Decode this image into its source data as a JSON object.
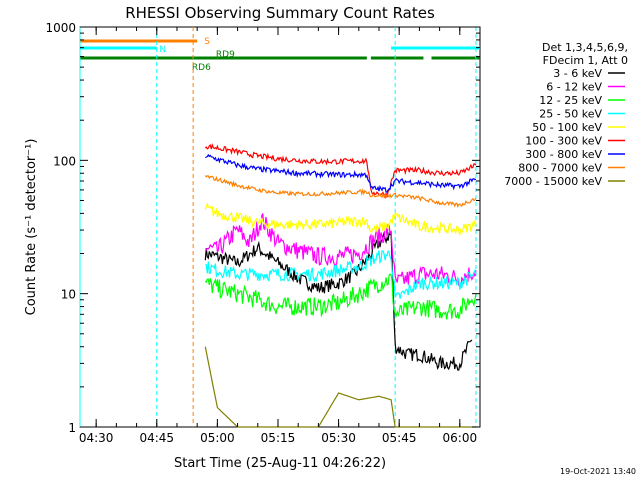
{
  "chart_data": {
    "type": "line",
    "title": "RHESSI Observing Summary Count Rates",
    "xlabel": "Start Time (25-Aug-11 04:26:22)",
    "ylabel": "Count Rate (s⁻¹ detector⁻¹)",
    "yscale": "log",
    "ylim": [
      1,
      1000
    ],
    "xlim": [
      "04:26",
      "06:05"
    ],
    "x_ticks": [
      "04:30",
      "04:45",
      "05:00",
      "05:15",
      "05:30",
      "05:45",
      "06:00"
    ],
    "y_ticks": [
      "1",
      "10",
      "100",
      "1000"
    ],
    "legend_header": [
      "Det 1,3,4,5,6,9,",
      "FDecim 1, Att 0"
    ],
    "legend_position": "right",
    "timestamp": "19-Oct-2021 13:40",
    "flags": [
      {
        "label": "S",
        "color": "#ff8000",
        "segments": [
          [
            "04:26",
            "04:55"
          ]
        ]
      },
      {
        "label": "N",
        "color": "#00ffff",
        "segments": [
          [
            "04:26",
            "04:45"
          ],
          [
            "05:43",
            "06:05"
          ]
        ]
      },
      {
        "label": "RD6",
        "color": "#008000",
        "segments": [
          [
            "04:26",
            "05:00"
          ]
        ]
      },
      {
        "label": "RD9",
        "color": "#008000",
        "segments": [
          [
            "05:00",
            "05:37"
          ],
          [
            "05:38",
            "05:51"
          ],
          [
            "05:53",
            "06:05"
          ]
        ]
      }
    ],
    "vertical_markers": [
      {
        "time": "04:26",
        "color": "#00ffff"
      },
      {
        "time": "04:45",
        "color": "#00ffff"
      },
      {
        "time": "04:54",
        "color": "#ff8000"
      },
      {
        "time": "05:44",
        "color": "#00ffff"
      },
      {
        "time": "06:04",
        "color": "#00ffff"
      }
    ],
    "series": [
      {
        "name": "3 - 6 keV",
        "color": "#000000",
        "points": [
          [
            "04:57",
            20
          ],
          [
            "05:00",
            19
          ],
          [
            "05:05",
            17
          ],
          [
            "05:10",
            22
          ],
          [
            "05:15",
            17
          ],
          [
            "05:20",
            13
          ],
          [
            "05:25",
            11
          ],
          [
            "05:30",
            12
          ],
          [
            "05:34",
            14
          ],
          [
            "05:37",
            18
          ],
          [
            "05:40",
            24
          ],
          [
            "05:43",
            28
          ],
          [
            "05:44",
            4
          ],
          [
            "05:47",
            3.5
          ],
          [
            "05:50",
            3.5
          ],
          [
            "05:55",
            3
          ],
          [
            "06:00",
            3
          ],
          [
            "06:03",
            4.5
          ]
        ]
      },
      {
        "name": "6 - 12 keV",
        "color": "#ff00ff",
        "points": [
          [
            "04:57",
            22
          ],
          [
            "05:00",
            21
          ],
          [
            "05:05",
            30
          ],
          [
            "05:08",
            24
          ],
          [
            "05:11",
            36
          ],
          [
            "05:15",
            24
          ],
          [
            "05:20",
            21
          ],
          [
            "05:25",
            19
          ],
          [
            "05:30",
            19
          ],
          [
            "05:35",
            20
          ],
          [
            "05:39",
            26
          ],
          [
            "05:43",
            30
          ],
          [
            "05:44",
            12
          ],
          [
            "05:50",
            14
          ],
          [
            "05:55",
            14
          ],
          [
            "06:00",
            13
          ],
          [
            "06:04",
            15
          ]
        ]
      },
      {
        "name": "12 - 25 keV",
        "color": "#00ff00",
        "points": [
          [
            "04:57",
            12
          ],
          [
            "05:00",
            11
          ],
          [
            "05:05",
            10
          ],
          [
            "05:10",
            9
          ],
          [
            "05:15",
            8
          ],
          [
            "05:20",
            8
          ],
          [
            "05:25",
            8
          ],
          [
            "05:30",
            8.5
          ],
          [
            "05:35",
            10
          ],
          [
            "05:40",
            12
          ],
          [
            "05:43",
            13
          ],
          [
            "05:44",
            7
          ],
          [
            "05:50",
            8
          ],
          [
            "05:55",
            7.5
          ],
          [
            "06:00",
            7.5
          ],
          [
            "06:04",
            10
          ]
        ]
      },
      {
        "name": "25 - 50 keV",
        "color": "#00ffff",
        "points": [
          [
            "04:57",
            16
          ],
          [
            "05:00",
            15
          ],
          [
            "05:05",
            14
          ],
          [
            "05:10",
            14
          ],
          [
            "05:15",
            14
          ],
          [
            "05:20",
            14
          ],
          [
            "05:25",
            14
          ],
          [
            "05:30",
            15
          ],
          [
            "05:35",
            16
          ],
          [
            "05:40",
            19
          ],
          [
            "05:43",
            20
          ],
          [
            "05:44",
            9
          ],
          [
            "05:50",
            12
          ],
          [
            "05:55",
            12
          ],
          [
            "06:00",
            12
          ],
          [
            "06:04",
            14
          ]
        ]
      },
      {
        "name": "50 - 100 keV",
        "color": "#ffff00",
        "points": [
          [
            "04:57",
            44
          ],
          [
            "05:00",
            40
          ],
          [
            "05:05",
            37
          ],
          [
            "05:10",
            34
          ],
          [
            "05:15",
            33
          ],
          [
            "05:20",
            33
          ],
          [
            "05:25",
            33
          ],
          [
            "05:30",
            34
          ],
          [
            "05:35",
            35
          ],
          [
            "05:37",
            35
          ],
          [
            "05:38",
            30
          ],
          [
            "05:42",
            32
          ],
          [
            "05:44",
            38
          ],
          [
            "05:50",
            32
          ],
          [
            "05:55",
            31
          ],
          [
            "06:00",
            30
          ],
          [
            "06:04",
            33
          ]
        ]
      },
      {
        "name": "100 - 300 keV",
        "color": "#ff0000",
        "points": [
          [
            "04:57",
            128
          ],
          [
            "05:00",
            124
          ],
          [
            "05:05",
            116
          ],
          [
            "05:10",
            108
          ],
          [
            "05:15",
            103
          ],
          [
            "05:20",
            100
          ],
          [
            "05:25",
            98
          ],
          [
            "05:30",
            98
          ],
          [
            "05:35",
            99
          ],
          [
            "05:37",
            99
          ],
          [
            "05:38",
            58
          ],
          [
            "05:42",
            55
          ],
          [
            "05:44",
            84
          ],
          [
            "05:50",
            84
          ],
          [
            "05:55",
            80
          ],
          [
            "06:00",
            80
          ],
          [
            "06:04",
            92
          ]
        ]
      },
      {
        "name": "300 - 800 keV",
        "color": "#0000ff",
        "points": [
          [
            "04:57",
            108
          ],
          [
            "05:00",
            102
          ],
          [
            "05:05",
            92
          ],
          [
            "05:10",
            86
          ],
          [
            "05:15",
            83
          ],
          [
            "05:20",
            80
          ],
          [
            "05:25",
            79
          ],
          [
            "05:30",
            78
          ],
          [
            "05:35",
            78
          ],
          [
            "05:37",
            78
          ],
          [
            "05:38",
            62
          ],
          [
            "05:42",
            60
          ],
          [
            "05:44",
            70
          ],
          [
            "05:50",
            68
          ],
          [
            "05:55",
            65
          ],
          [
            "06:00",
            64
          ],
          [
            "06:04",
            72
          ]
        ]
      },
      {
        "name": "800 - 7000 keV",
        "color": "#ff8000",
        "points": [
          [
            "04:57",
            76
          ],
          [
            "05:00",
            72
          ],
          [
            "05:05",
            65
          ],
          [
            "05:10",
            60
          ],
          [
            "05:15",
            57
          ],
          [
            "05:20",
            56
          ],
          [
            "05:25",
            56
          ],
          [
            "05:30",
            57
          ],
          [
            "05:35",
            58
          ],
          [
            "05:37",
            58
          ],
          [
            "05:38",
            55
          ],
          [
            "05:42",
            54
          ],
          [
            "05:44",
            55
          ],
          [
            "05:50",
            52
          ],
          [
            "05:55",
            48
          ],
          [
            "06:00",
            46
          ],
          [
            "06:04",
            52
          ]
        ]
      },
      {
        "name": "7000 - 15000 keV",
        "color": "#808000",
        "points": [
          [
            "04:57",
            4
          ],
          [
            "05:00",
            1.4
          ],
          [
            "05:05",
            1
          ],
          [
            "05:25",
            1
          ],
          [
            "05:30",
            1.8
          ],
          [
            "05:35",
            1.6
          ],
          [
            "05:40",
            1.7
          ],
          [
            "05:43",
            1.6
          ],
          [
            "05:44",
            1
          ],
          [
            "06:04",
            1
          ]
        ]
      }
    ]
  }
}
